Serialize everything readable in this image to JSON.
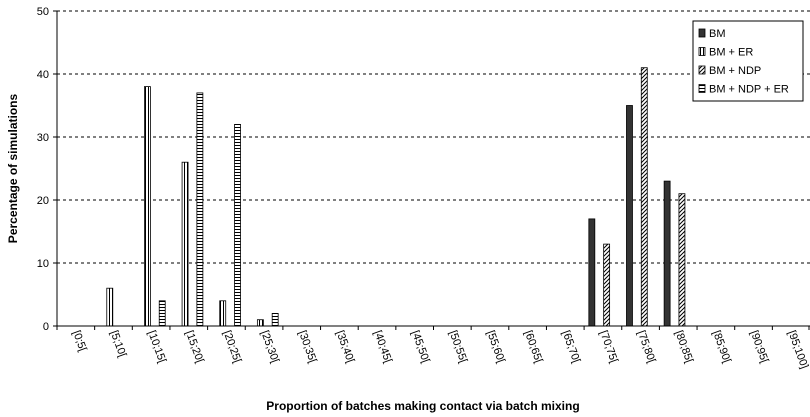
{
  "chart_data": {
    "type": "bar",
    "xlabel": "Proportion of batches making contact via batch mixing",
    "ylabel": "Percentage of simulations",
    "ylim": [
      0,
      50
    ],
    "yticks": [
      0,
      10,
      20,
      30,
      40,
      50
    ],
    "grid": true,
    "legend_position": "top-right",
    "categories": [
      "[0;5[",
      "[5;10[",
      "[10;15[",
      "[15;20[",
      "[20;25[",
      "[25;30[",
      "[30;35[",
      "[35;40[",
      "[40;45[",
      "[45;50[",
      "[50;55[",
      "[55;60[",
      "[60;65[",
      "[65;70[",
      "[70;75[",
      "[75;80[",
      "[80;85[",
      "[85;90[",
      "[90;95[",
      "[95;100]"
    ],
    "series": [
      {
        "name": "BM",
        "pattern": "solid",
        "values": [
          0,
          0,
          0,
          0,
          0,
          0,
          0,
          0,
          0,
          0,
          0,
          0,
          0,
          0,
          17,
          35,
          23,
          0,
          0,
          0
        ]
      },
      {
        "name": "BM + ER",
        "pattern": "vertical",
        "values": [
          0,
          6,
          38,
          26,
          4,
          1,
          0,
          0,
          0,
          0,
          0,
          0,
          0,
          0,
          0,
          0,
          0,
          0,
          0,
          0
        ]
      },
      {
        "name": "BM + NDP",
        "pattern": "diagonal",
        "values": [
          0,
          0,
          0,
          0,
          0,
          0,
          0,
          0,
          0,
          0,
          0,
          0,
          0,
          0,
          13,
          41,
          21,
          0,
          0,
          0
        ]
      },
      {
        "name": "BM + NDP + ER",
        "pattern": "horizontal",
        "values": [
          0,
          0,
          4,
          37,
          32,
          2,
          0,
          0,
          0,
          0,
          0,
          0,
          0,
          0,
          0,
          0,
          0,
          0,
          0,
          0
        ]
      }
    ]
  }
}
